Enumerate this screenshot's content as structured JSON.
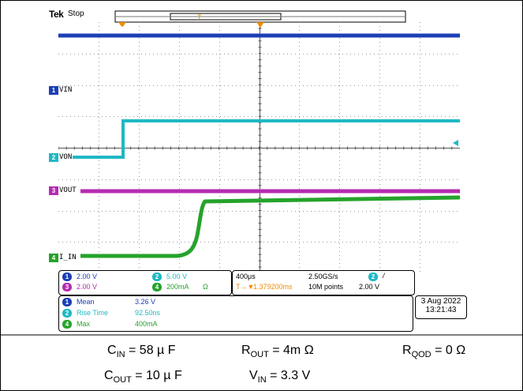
{
  "scope": {
    "brand": "Tek",
    "state": "Stop",
    "trigger_marker": "T"
  },
  "channels": [
    {
      "num": "1",
      "label": "VIN",
      "color": "#1c3fb5"
    },
    {
      "num": "2",
      "label": "VON",
      "color": "#1fb8c4"
    },
    {
      "num": "3",
      "label": "VOUT",
      "color": "#b52bb0"
    },
    {
      "num": "4",
      "label": "I_IN",
      "color": "#25a32b"
    }
  ],
  "vertical_settings": {
    "ch1": "2.00 V",
    "ch2": "5.00 V",
    "ch3": "2.00 V",
    "ch4": "200mA",
    "ch4_unit_symbol": "Ω"
  },
  "horizontal": {
    "timebase": "400μs",
    "sample_rate": "2.50GS/s",
    "trigger_channel": "2",
    "trigger_slope": "/",
    "trigger_delay": "1.379200ms",
    "record_length": "10M points",
    "trigger_level": "2.00 V"
  },
  "measurements": [
    {
      "ch": "1",
      "name": "Mean",
      "value": "3.26 V"
    },
    {
      "ch": "2",
      "name": "Rise Time",
      "value": "92.50ns"
    },
    {
      "ch": "4",
      "name": "Max",
      "value": "400mA"
    }
  ],
  "datetime": {
    "date": "3 Aug 2022",
    "time": "13:21:43"
  },
  "captions": {
    "cin_label": "C",
    "cin_sub": "IN",
    "cin_value": " = 58 µ F",
    "rout_label": "R",
    "rout_sub": "OUT",
    "rout_value": " = 4m  Ω",
    "rqod_label": "R",
    "rqod_sub": "QOD",
    "rqod_value": " = 0  Ω",
    "cout_label": "C",
    "cout_sub": "OUT",
    "cout_value": " = 10  µ F",
    "vin_label": "V",
    "vin_sub": "IN",
    "vin_value": " = 3.3 V"
  },
  "colors": {
    "ch1": "#1c3fb5",
    "ch2": "#1fb8c4",
    "ch3": "#b52bb0",
    "ch4": "#25a32b",
    "trigger": "#f08c00",
    "grid": "#9a9a9a"
  }
}
